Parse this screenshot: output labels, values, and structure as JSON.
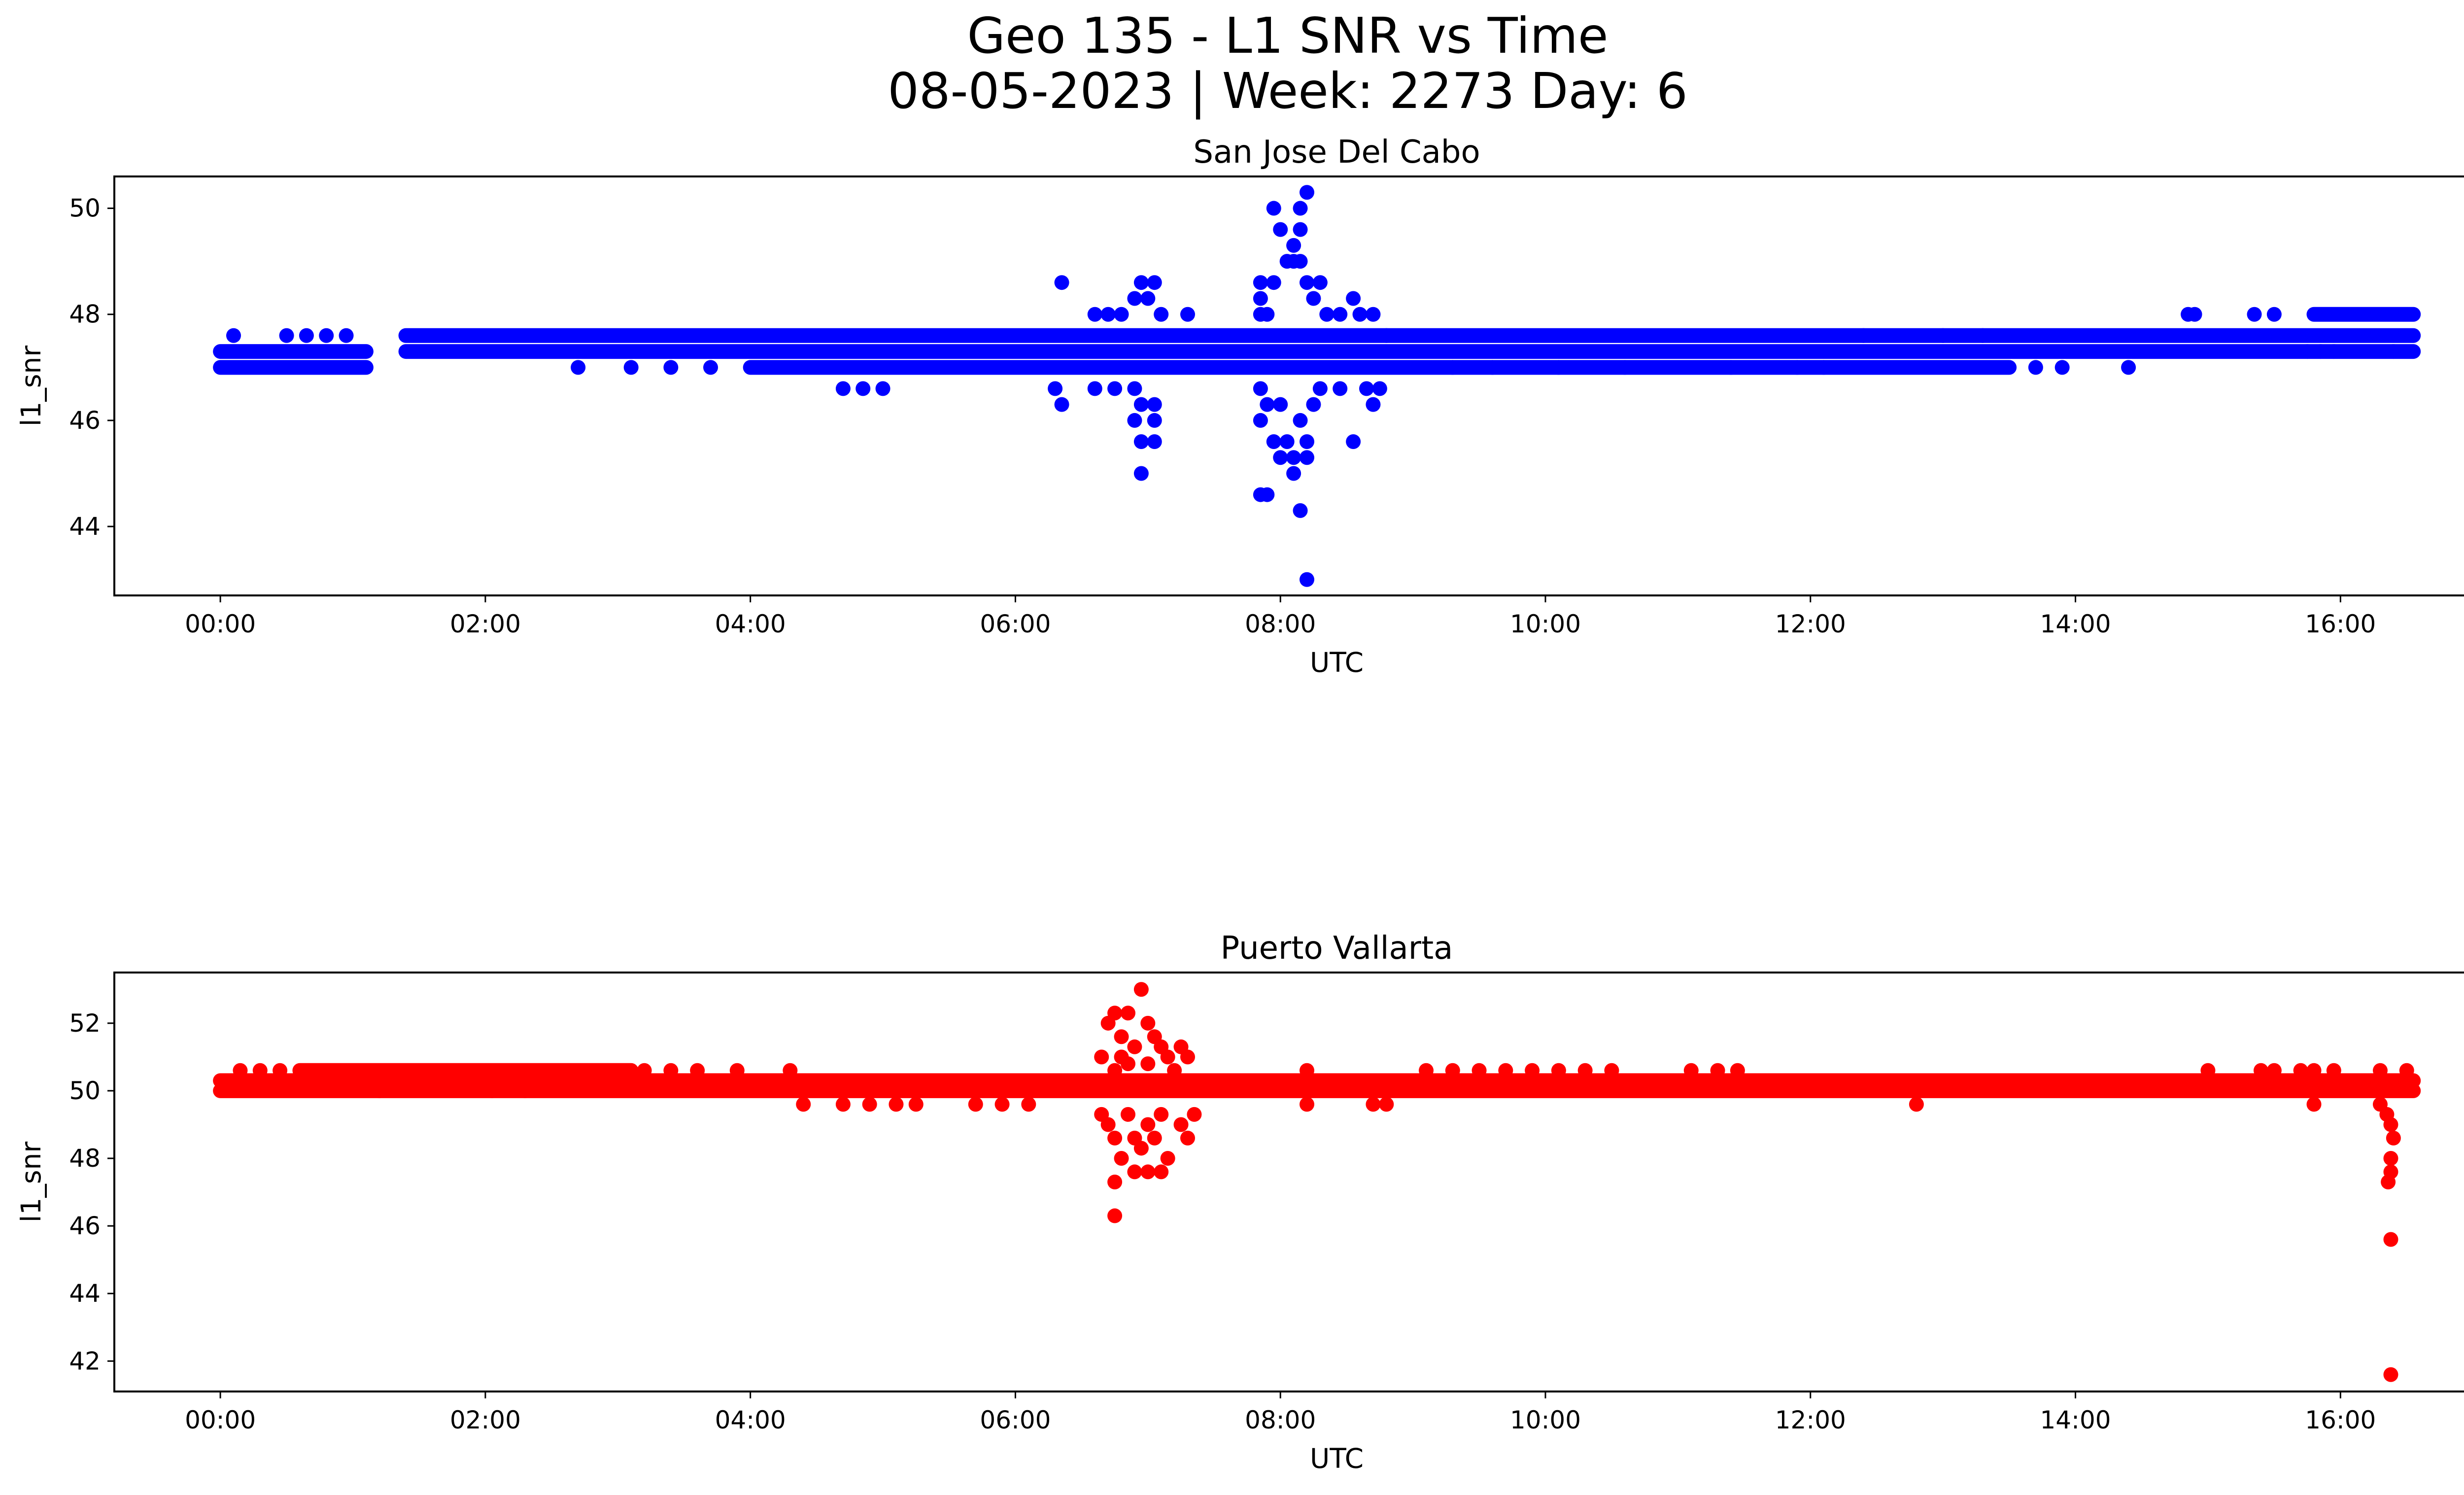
{
  "figure": {
    "title_line1": "Geo 135 - L1 SNR vs Time",
    "title_line2": "08-05-2023 | Week: 2273 Day: 6"
  },
  "chart_data": [
    {
      "type": "scatter",
      "title": "San Jose Del Cabo",
      "xlabel": "UTC",
      "ylabel": "l1_snr",
      "x_unit": "hours UTC",
      "xlim": [
        -0.8,
        17.65
      ],
      "ylim": [
        42.7,
        50.6
      ],
      "xticks": [
        0,
        2,
        4,
        6,
        8,
        10,
        12,
        14,
        16
      ],
      "xtick_labels": [
        "00:00",
        "02:00",
        "04:00",
        "06:00",
        "08:00",
        "10:00",
        "12:00",
        "14:00",
        "16:00"
      ],
      "yticks": [
        44,
        46,
        48,
        50
      ],
      "ytick_labels": [
        "44",
        "46",
        "48",
        "50"
      ],
      "color": "#0000ff",
      "grid": false,
      "series": [
        {
          "bands": [
            {
              "x0": 0.0,
              "x1": 1.1,
              "y": 47.0
            },
            {
              "x0": 0.0,
              "x1": 1.1,
              "y": 47.3
            },
            {
              "x0": 1.4,
              "x1": 16.55,
              "y": 47.3
            },
            {
              "x0": 1.4,
              "x1": 16.55,
              "y": 47.6
            },
            {
              "x0": 4.0,
              "x1": 13.5,
              "y": 47.0
            },
            {
              "x0": 15.8,
              "x1": 16.55,
              "y": 48.0
            }
          ],
          "points": [
            {
              "x": 0.1,
              "y": 47.6
            },
            {
              "x": 0.5,
              "y": 47.6
            },
            {
              "x": 0.65,
              "y": 47.6
            },
            {
              "x": 0.8,
              "y": 47.6
            },
            {
              "x": 0.95,
              "y": 47.6
            },
            {
              "x": 2.7,
              "y": 47.0
            },
            {
              "x": 3.1,
              "y": 47.0
            },
            {
              "x": 3.4,
              "y": 47.0
            },
            {
              "x": 3.7,
              "y": 47.0
            },
            {
              "x": 4.7,
              "y": 46.6
            },
            {
              "x": 4.85,
              "y": 46.6
            },
            {
              "x": 5.0,
              "y": 46.6
            },
            {
              "x": 6.3,
              "y": 46.6
            },
            {
              "x": 6.35,
              "y": 46.3
            },
            {
              "x": 6.35,
              "y": 48.6
            },
            {
              "x": 6.6,
              "y": 48.0
            },
            {
              "x": 6.7,
              "y": 48.0
            },
            {
              "x": 6.8,
              "y": 48.0
            },
            {
              "x": 6.6,
              "y": 46.6
            },
            {
              "x": 6.75,
              "y": 46.6
            },
            {
              "x": 6.9,
              "y": 46.6
            },
            {
              "x": 6.9,
              "y": 48.3
            },
            {
              "x": 6.95,
              "y": 48.6
            },
            {
              "x": 7.05,
              "y": 48.6
            },
            {
              "x": 7.0,
              "y": 48.3
            },
            {
              "x": 7.1,
              "y": 48.0
            },
            {
              "x": 7.3,
              "y": 48.0
            },
            {
              "x": 6.95,
              "y": 46.3
            },
            {
              "x": 7.05,
              "y": 46.3
            },
            {
              "x": 6.9,
              "y": 46.0
            },
            {
              "x": 7.05,
              "y": 46.0
            },
            {
              "x": 6.95,
              "y": 45.6
            },
            {
              "x": 7.05,
              "y": 45.6
            },
            {
              "x": 6.95,
              "y": 45.0
            },
            {
              "x": 7.85,
              "y": 48.0
            },
            {
              "x": 7.85,
              "y": 48.3
            },
            {
              "x": 7.85,
              "y": 48.6
            },
            {
              "x": 7.9,
              "y": 48.0
            },
            {
              "x": 7.95,
              "y": 48.6
            },
            {
              "x": 7.95,
              "y": 50.0
            },
            {
              "x": 8.0,
              "y": 49.6
            },
            {
              "x": 8.05,
              "y": 49.0
            },
            {
              "x": 8.1,
              "y": 49.3
            },
            {
              "x": 8.1,
              "y": 49.0
            },
            {
              "x": 8.15,
              "y": 49.6
            },
            {
              "x": 8.15,
              "y": 50.0
            },
            {
              "x": 8.15,
              "y": 49.0
            },
            {
              "x": 8.2,
              "y": 50.3
            },
            {
              "x": 8.2,
              "y": 48.6
            },
            {
              "x": 8.25,
              "y": 48.3
            },
            {
              "x": 8.3,
              "y": 48.6
            },
            {
              "x": 8.35,
              "y": 48.0
            },
            {
              "x": 8.45,
              "y": 48.0
            },
            {
              "x": 8.55,
              "y": 48.3
            },
            {
              "x": 8.6,
              "y": 48.0
            },
            {
              "x": 8.7,
              "y": 48.0
            },
            {
              "x": 8.8,
              "y": 47.6
            },
            {
              "x": 7.85,
              "y": 46.6
            },
            {
              "x": 7.9,
              "y": 46.3
            },
            {
              "x": 7.85,
              "y": 46.0
            },
            {
              "x": 8.0,
              "y": 46.3
            },
            {
              "x": 7.95,
              "y": 45.6
            },
            {
              "x": 8.05,
              "y": 45.6
            },
            {
              "x": 8.0,
              "y": 45.3
            },
            {
              "x": 8.1,
              "y": 45.3
            },
            {
              "x": 8.1,
              "y": 45.0
            },
            {
              "x": 8.15,
              "y": 46.0
            },
            {
              "x": 8.2,
              "y": 45.6
            },
            {
              "x": 8.2,
              "y": 45.3
            },
            {
              "x": 8.25,
              "y": 46.3
            },
            {
              "x": 8.3,
              "y": 46.6
            },
            {
              "x": 8.45,
              "y": 46.6
            },
            {
              "x": 8.55,
              "y": 45.6
            },
            {
              "x": 8.65,
              "y": 46.6
            },
            {
              "x": 8.7,
              "y": 46.3
            },
            {
              "x": 8.75,
              "y": 46.6
            },
            {
              "x": 7.9,
              "y": 44.6
            },
            {
              "x": 7.85,
              "y": 44.6
            },
            {
              "x": 8.15,
              "y": 44.3
            },
            {
              "x": 8.2,
              "y": 43.0
            },
            {
              "x": 9.3,
              "y": 47.0
            },
            {
              "x": 9.6,
              "y": 47.0
            },
            {
              "x": 10.1,
              "y": 47.0
            },
            {
              "x": 10.6,
              "y": 47.0
            },
            {
              "x": 11.4,
              "y": 47.0
            },
            {
              "x": 11.9,
              "y": 47.0
            },
            {
              "x": 12.1,
              "y": 47.0
            },
            {
              "x": 12.4,
              "y": 47.6
            },
            {
              "x": 13.0,
              "y": 47.6
            },
            {
              "x": 13.3,
              "y": 47.6
            },
            {
              "x": 13.7,
              "y": 47.0
            },
            {
              "x": 13.9,
              "y": 47.0
            },
            {
              "x": 14.4,
              "y": 47.0
            },
            {
              "x": 14.85,
              "y": 48.0
            },
            {
              "x": 14.9,
              "y": 48.0
            },
            {
              "x": 15.35,
              "y": 48.0
            },
            {
              "x": 15.5,
              "y": 48.0
            },
            {
              "x": 15.75,
              "y": 47.3
            },
            {
              "x": 15.85,
              "y": 47.3
            },
            {
              "x": 15.95,
              "y": 47.3
            },
            {
              "x": 16.4,
              "y": 47.3
            }
          ]
        }
      ]
    },
    {
      "type": "scatter",
      "title": "Puerto Vallarta",
      "xlabel": "UTC",
      "ylabel": "l1_snr",
      "x_unit": "hours UTC",
      "xlim": [
        -0.8,
        17.65
      ],
      "ylim": [
        41.1,
        53.5
      ],
      "xticks": [
        0,
        2,
        4,
        6,
        8,
        10,
        12,
        14,
        16
      ],
      "xtick_labels": [
        "00:00",
        "02:00",
        "04:00",
        "06:00",
        "08:00",
        "10:00",
        "12:00",
        "14:00",
        "16:00"
      ],
      "yticks": [
        42,
        44,
        46,
        48,
        50,
        52
      ],
      "ytick_labels": [
        "42",
        "44",
        "46",
        "48",
        "50",
        "52"
      ],
      "color": "#ff0000",
      "grid": false,
      "series": [
        {
          "bands": [
            {
              "x0": 0.0,
              "x1": 16.55,
              "y": 50.0
            },
            {
              "x0": 0.0,
              "x1": 16.55,
              "y": 50.3
            },
            {
              "x0": 0.6,
              "x1": 3.1,
              "y": 50.6
            },
            {
              "x0": 0.6,
              "x1": 3.1,
              "y": 50.45
            }
          ],
          "points": [
            {
              "x": 0.15,
              "y": 50.6
            },
            {
              "x": 0.3,
              "y": 50.6
            },
            {
              "x": 0.45,
              "y": 50.6
            },
            {
              "x": 3.2,
              "y": 50.6
            },
            {
              "x": 3.4,
              "y": 50.6
            },
            {
              "x": 3.6,
              "y": 50.6
            },
            {
              "x": 3.9,
              "y": 50.6
            },
            {
              "x": 4.3,
              "y": 50.6
            },
            {
              "x": 4.4,
              "y": 49.6
            },
            {
              "x": 4.7,
              "y": 49.6
            },
            {
              "x": 4.9,
              "y": 49.6
            },
            {
              "x": 5.1,
              "y": 49.6
            },
            {
              "x": 5.25,
              "y": 49.6
            },
            {
              "x": 5.7,
              "y": 49.6
            },
            {
              "x": 5.9,
              "y": 49.6
            },
            {
              "x": 6.1,
              "y": 49.6
            },
            {
              "x": 1.2,
              "y": 50.0
            },
            {
              "x": 2.05,
              "y": 50.0
            },
            {
              "x": 2.3,
              "y": 50.0
            },
            {
              "x": 6.65,
              "y": 51.0
            },
            {
              "x": 6.7,
              "y": 52.0
            },
            {
              "x": 6.75,
              "y": 52.3
            },
            {
              "x": 6.8,
              "y": 51.6
            },
            {
              "x": 6.85,
              "y": 52.3
            },
            {
              "x": 6.9,
              "y": 51.3
            },
            {
              "x": 6.95,
              "y": 53.0
            },
            {
              "x": 7.0,
              "y": 52.0
            },
            {
              "x": 7.05,
              "y": 51.6
            },
            {
              "x": 7.1,
              "y": 51.3
            },
            {
              "x": 7.15,
              "y": 51.0
            },
            {
              "x": 7.2,
              "y": 50.6
            },
            {
              "x": 7.25,
              "y": 51.3
            },
            {
              "x": 7.3,
              "y": 51.0
            },
            {
              "x": 6.8,
              "y": 51.0
            },
            {
              "x": 6.75,
              "y": 50.6
            },
            {
              "x": 6.85,
              "y": 50.8
            },
            {
              "x": 7.0,
              "y": 50.8
            },
            {
              "x": 6.65,
              "y": 49.3
            },
            {
              "x": 6.7,
              "y": 49.0
            },
            {
              "x": 6.75,
              "y": 48.6
            },
            {
              "x": 6.8,
              "y": 48.0
            },
            {
              "x": 6.85,
              "y": 49.3
            },
            {
              "x": 6.9,
              "y": 48.6
            },
            {
              "x": 6.95,
              "y": 48.3
            },
            {
              "x": 7.0,
              "y": 49.0
            },
            {
              "x": 7.05,
              "y": 48.6
            },
            {
              "x": 7.1,
              "y": 49.3
            },
            {
              "x": 7.15,
              "y": 48.0
            },
            {
              "x": 7.25,
              "y": 49.0
            },
            {
              "x": 7.3,
              "y": 48.6
            },
            {
              "x": 7.35,
              "y": 49.3
            },
            {
              "x": 6.75,
              "y": 47.3
            },
            {
              "x": 6.9,
              "y": 47.6
            },
            {
              "x": 7.0,
              "y": 47.6
            },
            {
              "x": 7.1,
              "y": 47.6
            },
            {
              "x": 6.75,
              "y": 46.3
            },
            {
              "x": 8.2,
              "y": 50.6
            },
            {
              "x": 8.7,
              "y": 49.6
            },
            {
              "x": 8.8,
              "y": 49.6
            },
            {
              "x": 8.2,
              "y": 49.6
            },
            {
              "x": 9.1,
              "y": 50.6
            },
            {
              "x": 9.3,
              "y": 50.6
            },
            {
              "x": 9.5,
              "y": 50.6
            },
            {
              "x": 9.7,
              "y": 50.6
            },
            {
              "x": 9.9,
              "y": 50.6
            },
            {
              "x": 10.1,
              "y": 50.6
            },
            {
              "x": 10.3,
              "y": 50.6
            },
            {
              "x": 10.5,
              "y": 50.6
            },
            {
              "x": 11.1,
              "y": 50.6
            },
            {
              "x": 11.3,
              "y": 50.6
            },
            {
              "x": 11.45,
              "y": 50.6
            },
            {
              "x": 12.8,
              "y": 49.6
            },
            {
              "x": 15.0,
              "y": 50.6
            },
            {
              "x": 15.4,
              "y": 50.6
            },
            {
              "x": 15.5,
              "y": 50.6
            },
            {
              "x": 15.7,
              "y": 50.6
            },
            {
              "x": 15.8,
              "y": 50.6
            },
            {
              "x": 15.95,
              "y": 50.6
            },
            {
              "x": 16.3,
              "y": 50.6
            },
            {
              "x": 16.5,
              "y": 50.6
            },
            {
              "x": 15.8,
              "y": 49.6
            },
            {
              "x": 16.3,
              "y": 49.6
            },
            {
              "x": 16.35,
              "y": 49.3
            },
            {
              "x": 16.38,
              "y": 49.0
            },
            {
              "x": 16.4,
              "y": 48.6
            },
            {
              "x": 16.38,
              "y": 48.0
            },
            {
              "x": 16.38,
              "y": 47.6
            },
            {
              "x": 16.36,
              "y": 47.3
            },
            {
              "x": 16.38,
              "y": 45.6
            },
            {
              "x": 16.38,
              "y": 41.6
            }
          ]
        }
      ]
    }
  ]
}
